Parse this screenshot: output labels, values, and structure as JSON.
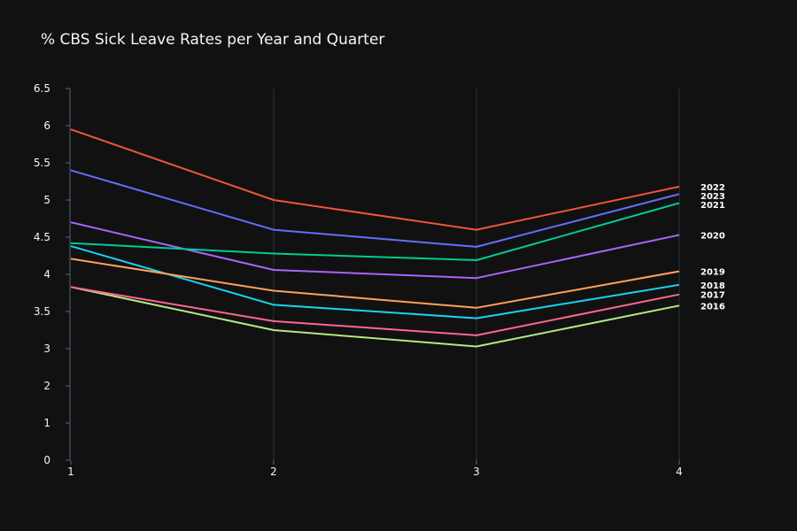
{
  "chart_data": {
    "type": "line",
    "title": "% CBS Sick Leave Rates per Year and Quarter",
    "xlabel": "",
    "ylabel": "",
    "x": [
      1,
      2,
      3,
      4
    ],
    "x_tick_labels": [
      "1",
      "2",
      "3",
      "4"
    ],
    "y_ticks": [
      {
        "value": 0,
        "label": "0"
      },
      {
        "value": 1,
        "label": "1"
      },
      {
        "value": 2,
        "label": "2"
      },
      {
        "value": 3,
        "label": "3"
      },
      {
        "value": 3.5,
        "label": "3.5"
      },
      {
        "value": 4,
        "label": "4"
      },
      {
        "value": 4.5,
        "label": "4.5"
      },
      {
        "value": 5,
        "label": "5"
      },
      {
        "value": 5.5,
        "label": "5.5"
      },
      {
        "value": 6,
        "label": "6"
      },
      {
        "value": 6.5,
        "label": "6.5"
      }
    ],
    "ylim": [
      0,
      6.5
    ],
    "y_scale_note_hidden": true,
    "grid": {
      "x": true,
      "y": false
    },
    "legend": "end-of-line labels",
    "series": [
      {
        "name": "2022",
        "color": "#EF553B",
        "values": [
          5.95,
          5.0,
          4.6,
          5.18
        ]
      },
      {
        "name": "2023",
        "color": "#636EFA",
        "values": [
          5.4,
          4.6,
          4.37,
          5.08
        ]
      },
      {
        "name": "2021",
        "color": "#00CC96",
        "values": [
          4.42,
          4.28,
          4.19,
          4.96
        ]
      },
      {
        "name": "2020",
        "color": "#AB63FA",
        "values": [
          4.7,
          4.06,
          3.95,
          4.53
        ]
      },
      {
        "name": "2019",
        "color": "#FFA15A",
        "values": [
          4.21,
          3.78,
          3.55,
          4.04
        ]
      },
      {
        "name": "2018",
        "color": "#19D3F3",
        "values": [
          4.38,
          3.59,
          3.41,
          3.86
        ]
      },
      {
        "name": "2017",
        "color": "#FF6692",
        "values": [
          3.83,
          3.37,
          3.18,
          3.73
        ]
      },
      {
        "name": "2016",
        "color": "#B6E880",
        "values": [
          3.83,
          3.25,
          3.03,
          3.58
        ]
      }
    ]
  }
}
